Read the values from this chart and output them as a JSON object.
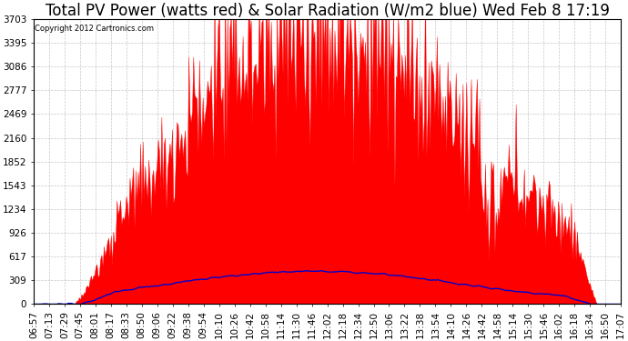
{
  "title": "Total PV Power (watts red) & Solar Radiation (W/m2 blue) Wed Feb 8 17:19",
  "copyright_text": "Copyright 2012 Cartronics.com",
  "background_color": "#ffffff",
  "plot_bg_color": "#ffffff",
  "grid_color": "#b0b0b0",
  "red_color": "#ff0000",
  "blue_color": "#0000cc",
  "ylim": [
    0,
    3703.2
  ],
  "yticks": [
    0.0,
    308.6,
    617.2,
    925.8,
    1234.4,
    1543.0,
    1851.6,
    2160.2,
    2468.8,
    2777.4,
    3086.0,
    3394.6,
    3703.2
  ],
  "xtick_labels": [
    "06:57",
    "07:13",
    "07:29",
    "07:45",
    "08:01",
    "08:17",
    "08:33",
    "08:50",
    "09:06",
    "09:22",
    "09:38",
    "09:54",
    "10:10",
    "10:26",
    "10:42",
    "10:58",
    "11:14",
    "11:30",
    "11:46",
    "12:02",
    "12:18",
    "12:34",
    "12:50",
    "13:06",
    "13:22",
    "13:38",
    "13:54",
    "14:10",
    "14:26",
    "14:42",
    "14:58",
    "15:14",
    "15:30",
    "15:46",
    "16:02",
    "16:18",
    "16:34",
    "16:50",
    "17:07"
  ],
  "n_points": 500,
  "title_fontsize": 12,
  "tick_fontsize": 7.5
}
